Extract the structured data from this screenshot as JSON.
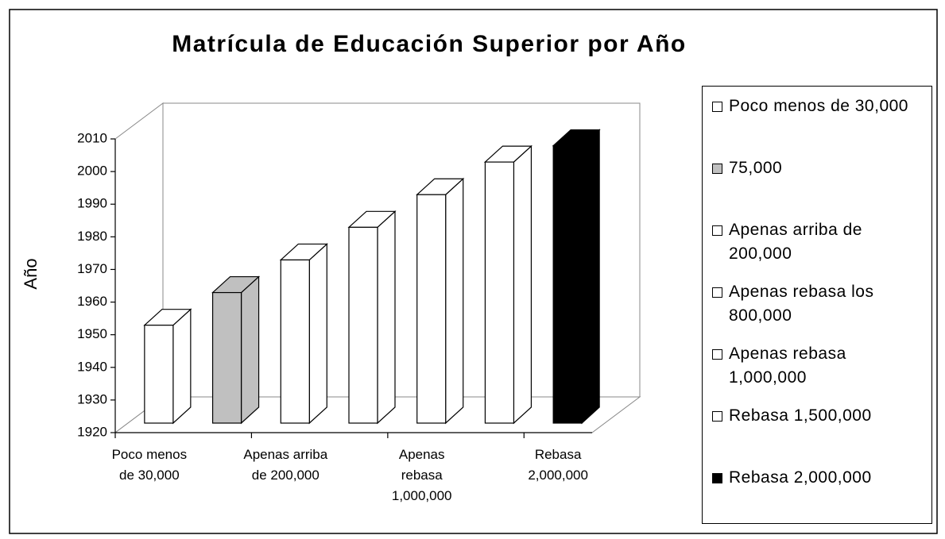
{
  "chart_data": {
    "type": "bar3d",
    "title": "Matrícula de Educación Superior por Año",
    "y_label": "Año",
    "categories": [
      "Poco menos de 30,000",
      null,
      "Apenas arriba de 200,000",
      null,
      "Apenas rebasa 1,000,000",
      null,
      "Rebasa 2,000,000"
    ],
    "series": [
      {
        "name": "Poco menos de 30,000",
        "color": "#ffffff",
        "values": [
          1950,
          null,
          null,
          null,
          null,
          null,
          null
        ]
      },
      {
        "name": "75,000",
        "color": "#c0c0c0",
        "values": [
          null,
          1960,
          null,
          null,
          null,
          null,
          null
        ]
      },
      {
        "name": "Apenas arriba de 200,000",
        "color": "#ffffff",
        "values": [
          null,
          null,
          1970,
          null,
          null,
          null,
          null
        ]
      },
      {
        "name": "Apenas rebasa los 800,000",
        "color": "#ffffff",
        "values": [
          null,
          null,
          null,
          1980,
          null,
          null,
          null
        ]
      },
      {
        "name": "Apenas rebasa 1,000,000",
        "color": "#ffffff",
        "values": [
          null,
          null,
          null,
          null,
          1990,
          null,
          null
        ]
      },
      {
        "name": "Rebasa 1,500,000",
        "color": "#ffffff",
        "values": [
          null,
          null,
          null,
          null,
          null,
          2000,
          null
        ]
      },
      {
        "name": "Rebasa 2,000,000",
        "color": "#000000",
        "values": [
          null,
          null,
          null,
          null,
          null,
          null,
          2005
        ]
      }
    ],
    "ylim": [
      1920,
      2010
    ],
    "yticks": [
      1920,
      1930,
      1940,
      1950,
      1960,
      1970,
      1980,
      1990,
      2000,
      2010
    ],
    "legend": "right"
  }
}
